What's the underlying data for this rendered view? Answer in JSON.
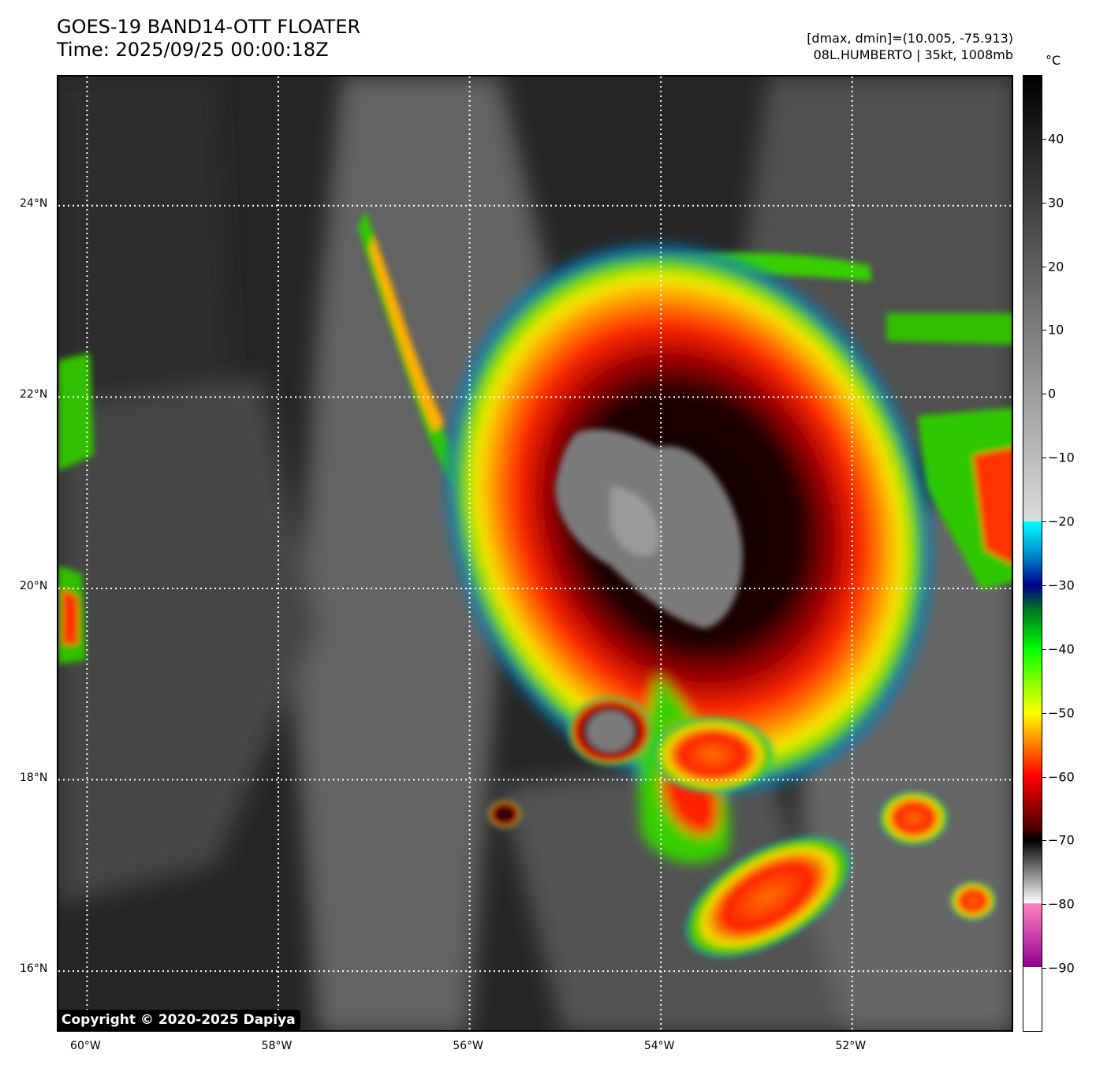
{
  "header": {
    "title_line1": "GOES-19 BAND14-OTT FLOATER",
    "title_line2": "Time: 2025/09/25 00:00:18Z",
    "meta_line1": "[dmax, dmin]=(10.005, -75.913)",
    "meta_line2": "08L.HUMBERTO | 35kt, 1008mb"
  },
  "colorbar": {
    "unit": "°C",
    "vmin": -100,
    "vmax": 50,
    "ticks": [
      40,
      30,
      20,
      10,
      0,
      -10,
      -20,
      -30,
      -40,
      -50,
      -60,
      -70,
      -80,
      -90
    ],
    "tick_labels": [
      "40",
      "30",
      "20",
      "10",
      "0",
      "−10",
      "−20",
      "−30",
      "−40",
      "−50",
      "−60",
      "−70",
      "−80",
      "−90"
    ]
  },
  "map": {
    "lon_range": [
      -60.3,
      -50.3
    ],
    "lat_range": [
      15.35,
      25.35
    ],
    "lat_gridlines": [
      24,
      22,
      20,
      18,
      16
    ],
    "lat_labels": [
      "24°N",
      "22°N",
      "20°N",
      "18°N",
      "16°N"
    ],
    "lon_gridlines": [
      -60,
      -58,
      -56,
      -54,
      -52
    ],
    "lon_labels": [
      "60°W",
      "58°W",
      "56°W",
      "54°W",
      "52°W"
    ]
  },
  "copyright": "Copyright © 2020-2025 Dapiya"
}
